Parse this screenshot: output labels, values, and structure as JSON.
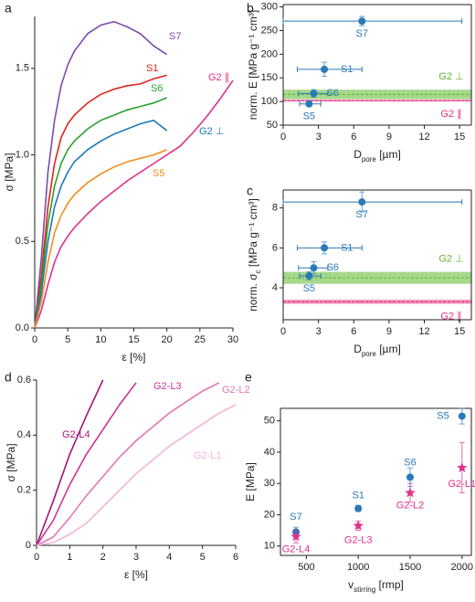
{
  "chart_data": [
    {
      "type": "line",
      "panel_label": "a",
      "xlabel": "ε [%]",
      "ylabel": "σ [MPa]",
      "xlim": [
        0,
        30
      ],
      "ylim": [
        0,
        1.8
      ],
      "xticks": [
        0,
        5,
        10,
        15,
        20,
        25,
        30
      ],
      "yticks": [
        {
          "value": 0,
          "label": "0.0"
        },
        0.5,
        {
          "value": 1,
          "label": "1.0"
        },
        1.5
      ],
      "x": [
        0,
        1,
        2,
        3,
        4,
        5,
        6,
        8,
        10,
        12,
        14,
        16,
        18,
        20,
        22,
        24,
        26,
        28,
        30
      ],
      "series": [
        {
          "name": "S7",
          "color": "#7b4bb0",
          "values": [
            0,
            0.4,
            0.9,
            1.2,
            1.4,
            1.52,
            1.6,
            1.7,
            1.75,
            1.77,
            1.74,
            1.7,
            1.63,
            1.58,
            null,
            null,
            null,
            null,
            null
          ]
        },
        {
          "name": "S1",
          "color": "#e2231a",
          "values": [
            0,
            0.3,
            0.7,
            0.95,
            1.1,
            1.18,
            1.23,
            1.3,
            1.35,
            1.38,
            1.4,
            1.41,
            1.44,
            1.46,
            null,
            null,
            null,
            null,
            null
          ]
        },
        {
          "name": "S6",
          "color": "#2ca02c",
          "values": [
            0,
            0.25,
            0.6,
            0.82,
            0.95,
            1.03,
            1.08,
            1.15,
            1.2,
            1.23,
            1.26,
            1.28,
            1.3,
            1.33,
            null,
            null,
            null,
            null,
            null
          ]
        },
        {
          "name": "G2 ∥",
          "color": "#e0308a",
          "values": [
            0,
            0.1,
            0.25,
            0.38,
            0.47,
            0.53,
            0.58,
            0.66,
            0.73,
            0.79,
            0.85,
            0.9,
            0.95,
            1.0,
            1.05,
            1.13,
            1.22,
            1.32,
            1.43
          ]
        },
        {
          "name": "G2 ⊥",
          "color": "#1f77b4",
          "values": [
            0,
            0.2,
            0.5,
            0.7,
            0.82,
            0.9,
            0.96,
            1.03,
            1.08,
            1.12,
            1.15,
            1.18,
            1.2,
            1.14,
            null,
            null,
            null,
            null,
            null
          ]
        },
        {
          "name": "S5",
          "color": "#f28e1c",
          "values": [
            0,
            0.15,
            0.38,
            0.55,
            0.65,
            0.72,
            0.77,
            0.84,
            0.89,
            0.93,
            0.96,
            0.98,
            1.0,
            1.03,
            null,
            null,
            null,
            null,
            null
          ]
        }
      ]
    },
    {
      "type": "scatter",
      "panel_label": "b",
      "xlabel": [
        "D",
        "pore",
        " [µm]"
      ],
      "ylabel": "norm. E [MPa g⁻¹ cm³]",
      "xlim": [
        0,
        16
      ],
      "ylim": [
        50,
        305
      ],
      "xticks": [
        0,
        3,
        6,
        9,
        12,
        15
      ],
      "yticks": [
        50,
        100,
        150,
        200,
        250,
        300
      ],
      "bands": [
        {
          "name": "G2 ⊥",
          "color": "#5cb82e",
          "value": 115,
          "low": 105,
          "high": 125
        },
        {
          "name": "G2 ∥",
          "color": "#e8307f",
          "value": 102,
          "low": 100,
          "high": 104
        }
      ],
      "series": [
        {
          "color": "#2a7ab8",
          "marker": "circle",
          "labels": [
            "S7",
            "S1",
            "S6",
            "S5"
          ],
          "x": [
            6.7,
            3.5,
            2.6,
            2.2
          ],
          "values": [
            270,
            168,
            117,
            95
          ],
          "xerr": [
            [
              6.7,
              8.5
            ],
            [
              2.3,
              3.2
            ],
            [
              1.3,
              1.2
            ],
            [
              0.8,
              1.0
            ]
          ],
          "yerr": [
            10,
            15,
            8,
            5
          ]
        }
      ]
    },
    {
      "type": "scatter",
      "panel_label": "c",
      "xlabel": [
        "D",
        "pore",
        " [µm]"
      ],
      "ylabel": [
        "norm. σ",
        "c",
        " [MPa g⁻¹ cm³]"
      ],
      "xlim": [
        0,
        16
      ],
      "ylim": [
        2.4,
        8.9
      ],
      "xticks": [
        0,
        3,
        6,
        9,
        12,
        15
      ],
      "yticks": [
        4,
        6,
        8
      ],
      "bands": [
        {
          "name": "G2 ⊥",
          "color": "#5cb82e",
          "value": 4.5,
          "low": 4.2,
          "high": 4.8
        },
        {
          "name": "G2 ∥",
          "color": "#e8307f",
          "value": 3.3,
          "low": 3.2,
          "high": 3.4
        }
      ],
      "series": [
        {
          "color": "#2a7ab8",
          "marker": "circle",
          "labels": [
            "S7",
            "S1",
            "S6",
            "S5"
          ],
          "x": [
            6.7,
            3.5,
            2.6,
            2.2
          ],
          "values": [
            8.3,
            6.0,
            5.0,
            4.6
          ],
          "xerr": [
            [
              6.7,
              8.5
            ],
            [
              2.3,
              3.2
            ],
            [
              1.3,
              1.2
            ],
            [
              0.8,
              1.0
            ]
          ],
          "yerr": [
            0.5,
            0.3,
            0.3,
            0.2
          ]
        }
      ]
    },
    {
      "type": "line",
      "panel_label": "d",
      "xlabel": "ε [%]",
      "ylabel": "σ [MPa]",
      "xlim": [
        0,
        6
      ],
      "ylim": [
        0,
        0.6
      ],
      "xticks": [
        0,
        1,
        2,
        3,
        4,
        5,
        6
      ],
      "yticks": [
        0,
        0.2,
        0.4,
        0.6
      ],
      "x": [
        0,
        0.5,
        1,
        1.5,
        2,
        2.5,
        3,
        3.5,
        4,
        4.5,
        5,
        5.5,
        6
      ],
      "series": [
        {
          "name": "G2-L4",
          "color": "#a3137c",
          "values": [
            0,
            0.16,
            0.33,
            0.47,
            0.6,
            null,
            null,
            null,
            null,
            null,
            null,
            null,
            null
          ]
        },
        {
          "name": "G2-L3",
          "color": "#cc3399",
          "values": [
            0,
            0.09,
            0.22,
            0.33,
            0.42,
            0.51,
            0.59,
            null,
            null,
            null,
            null,
            null,
            null
          ]
        },
        {
          "name": "G2-L2",
          "color": "#e377b5",
          "values": [
            0,
            0.03,
            0.1,
            0.18,
            0.25,
            0.32,
            0.38,
            0.43,
            0.48,
            0.52,
            0.56,
            0.59,
            null
          ]
        },
        {
          "name": "G2-L1",
          "color": "#f2b6d6",
          "values": [
            0,
            0.01,
            0.04,
            0.08,
            0.14,
            0.2,
            0.26,
            0.31,
            0.36,
            0.4,
            0.44,
            0.48,
            0.51
          ]
        }
      ]
    },
    {
      "type": "scatter",
      "panel_label": "e",
      "xlabel": [
        "v",
        "stirring",
        " [rmp]"
      ],
      "ylabel": "E [MPa]",
      "xlim": [
        250,
        2090
      ],
      "ylim": [
        7,
        54
      ],
      "xticks": [
        500,
        1000,
        1500,
        2000
      ],
      "yticks": [
        10,
        20,
        30,
        40,
        50
      ],
      "series": [
        {
          "color": "#2a7ab8",
          "marker": "circle",
          "labels": [
            "S7",
            "S1",
            "S6",
            "S5"
          ],
          "x": [
            400,
            1000,
            1500,
            2000
          ],
          "values": [
            14.5,
            22,
            32,
            51.5
          ],
          "yerr": [
            1.5,
            1,
            3,
            2.5
          ]
        },
        {
          "color": "#e0308a",
          "marker": "star",
          "labels": [
            "G2-L4",
            "G2-L3",
            "G2-L2",
            "G2-L1"
          ],
          "x": [
            400,
            1000,
            1500,
            2000
          ],
          "values": [
            13,
            16.5,
            27,
            35
          ],
          "yerr": [
            2,
            1.5,
            3,
            8
          ]
        }
      ]
    }
  ]
}
